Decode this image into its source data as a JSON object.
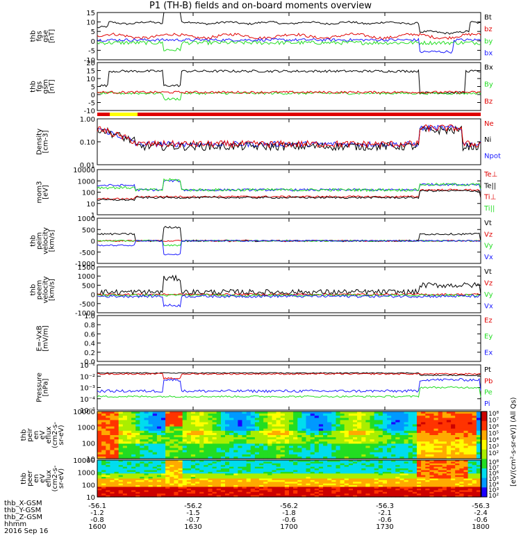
{
  "title": "P1 (TH-B) fields and on-board moments overview",
  "colors": {
    "black": "#000000",
    "red": "#e00000",
    "green": "#22dd22",
    "blue": "#1a1aff",
    "yellow": "#ffff00"
  },
  "chart_data": {
    "type": "line",
    "x_ticks": [
      "1600",
      "1630",
      "1700",
      "1730",
      "1800"
    ],
    "footer": {
      "row_labels": [
        "thb_X-GSM",
        "thb_Y-GSM",
        "thb_Z-GSM",
        "hhmm",
        "2016 Sep 16"
      ],
      "x_gsm": [
        "-56.1",
        "-56.2",
        "-56.2",
        "-56.3",
        "-56.3"
      ],
      "y_gsm": [
        "-1.2",
        "-1.5",
        "-1.8",
        "-2.1",
        "-2.4"
      ],
      "z_gsm": [
        "-0.8",
        "-0.7",
        "-0.6",
        "-0.6",
        "-0.6"
      ],
      "hhmm": [
        "1600",
        "1630",
        "1700",
        "1730",
        "1800"
      ]
    },
    "panels": [
      {
        "id": "fgs",
        "ylabel": [
          "thb",
          "fgs",
          "gse",
          "[nT]"
        ],
        "yticks": [
          "15",
          "10",
          "5",
          "0",
          "-5",
          "-10"
        ],
        "ylim": [
          -10,
          15
        ],
        "series": [
          {
            "name": "Bt",
            "color": "black"
          },
          {
            "name": "bz",
            "color": "red"
          },
          {
            "name": "by",
            "color": "green"
          },
          {
            "name": "bx",
            "color": "blue"
          }
        ]
      },
      {
        "id": "fgs_gsm",
        "ylabel": [
          "thb",
          "fgs",
          "gsm",
          "[nT]"
        ],
        "yticks": [
          "20",
          "15",
          "10",
          "5",
          "0",
          "-5",
          "-10"
        ],
        "ylim": [
          -10,
          20
        ],
        "series": [
          {
            "name": "Bx",
            "color": "black"
          },
          {
            "name": "By",
            "color": "green"
          },
          {
            "name": "Bz",
            "color": "red"
          }
        ]
      },
      {
        "id": "density",
        "ylabel": [
          "Density",
          "[cm-3]"
        ],
        "log": true,
        "yticks": [
          "1.00",
          "0.10",
          "0.01"
        ],
        "ylim": [
          0.01,
          1.0
        ],
        "series": [
          {
            "name": "Ne",
            "color": "red"
          },
          {
            "name": "Ni",
            "color": "black"
          },
          {
            "name": "Npot",
            "color": "blue"
          }
        ]
      },
      {
        "id": "temp",
        "ylabel": [
          "mom3",
          "[eV]"
        ],
        "log": true,
        "yticks": [
          "10000",
          "1000",
          "100",
          "10",
          "1"
        ],
        "ylim": [
          1,
          10000
        ],
        "series": [
          {
            "name": "Te⊥",
            "color": "red"
          },
          {
            "name": "Te||",
            "color": "black"
          },
          {
            "name": "Ti⊥",
            "color": "red"
          },
          {
            "name": "Ti||",
            "color": "green"
          }
        ]
      },
      {
        "id": "peim",
        "ylabel": [
          "thb",
          "peim",
          "velocity",
          "[km/s]"
        ],
        "yticks": [
          "1000",
          "500",
          "0",
          "-500",
          "-1000"
        ],
        "ylim": [
          -1000,
          1000
        ],
        "series": [
          {
            "name": "Vt",
            "color": "black"
          },
          {
            "name": "Vz",
            "color": "red"
          },
          {
            "name": "Vy",
            "color": "green"
          },
          {
            "name": "Vx",
            "color": "blue"
          }
        ]
      },
      {
        "id": "peem",
        "ylabel": [
          "thb",
          "peem",
          "velocity",
          "[km/s]"
        ],
        "yticks": [
          "1500",
          "1000",
          "500",
          "0",
          "-500",
          "-1000"
        ],
        "ylim": [
          -1000,
          1500
        ],
        "series": [
          {
            "name": "Vt",
            "color": "black"
          },
          {
            "name": "Vz",
            "color": "red"
          },
          {
            "name": "Vy",
            "color": "green"
          },
          {
            "name": "Vx",
            "color": "blue"
          }
        ]
      },
      {
        "id": "efield",
        "ylabel": [
          "E=-VxB",
          "[mV/m]"
        ],
        "yticks": [
          "1.0",
          "0.8",
          "0.6",
          "0.4",
          "0.2",
          "0.0"
        ],
        "ylim": [
          0,
          1
        ],
        "series": [
          {
            "name": "Ez",
            "color": "red"
          },
          {
            "name": "Ey",
            "color": "green"
          },
          {
            "name": "Ex",
            "color": "blue"
          }
        ]
      },
      {
        "id": "pressure",
        "ylabel": [
          "Pressure",
          "[nPa]"
        ],
        "log": true,
        "yticks": [
          "10⁻¹",
          "10⁻²",
          "10⁻³",
          "10⁻⁴",
          "10⁻⁵"
        ],
        "ylim": [
          1e-05,
          0.1
        ],
        "series": [
          {
            "name": "Pt",
            "color": "black"
          },
          {
            "name": "Pb",
            "color": "red"
          },
          {
            "name": "Pe",
            "color": "green"
          },
          {
            "name": "Pi",
            "color": "blue"
          }
        ]
      },
      {
        "id": "peir",
        "ylabel": [
          "thb",
          "peir",
          "en",
          "eV",
          "eflux",
          "(cm2-s-",
          "sr-eV)"
        ],
        "log": true,
        "type": "heatmap",
        "yticks": [
          "10000",
          "1000",
          "100",
          "10"
        ],
        "ylim": [
          10,
          10000
        ]
      },
      {
        "id": "peer",
        "ylabel": [
          "thb",
          "peer",
          "en",
          "eV",
          "eflux",
          "(cm2-s-",
          "sr-eV)"
        ],
        "log": true,
        "type": "heatmap",
        "yticks": [
          "10000",
          "1000",
          "100",
          "10"
        ],
        "ylim": [
          10,
          10000
        ]
      }
    ],
    "colorbar": {
      "ticks_top": [
        "10⁸",
        "10⁷",
        "10⁶",
        "10⁵",
        "10⁴",
        "10³",
        "10²"
      ],
      "ticks_bottom": [
        "10⁸",
        "10⁷",
        "10⁶",
        "10⁵",
        "10⁴",
        "10³",
        "10²"
      ],
      "label": "[eV/(cm²-s-sr-eV)] (All Qs)"
    }
  }
}
